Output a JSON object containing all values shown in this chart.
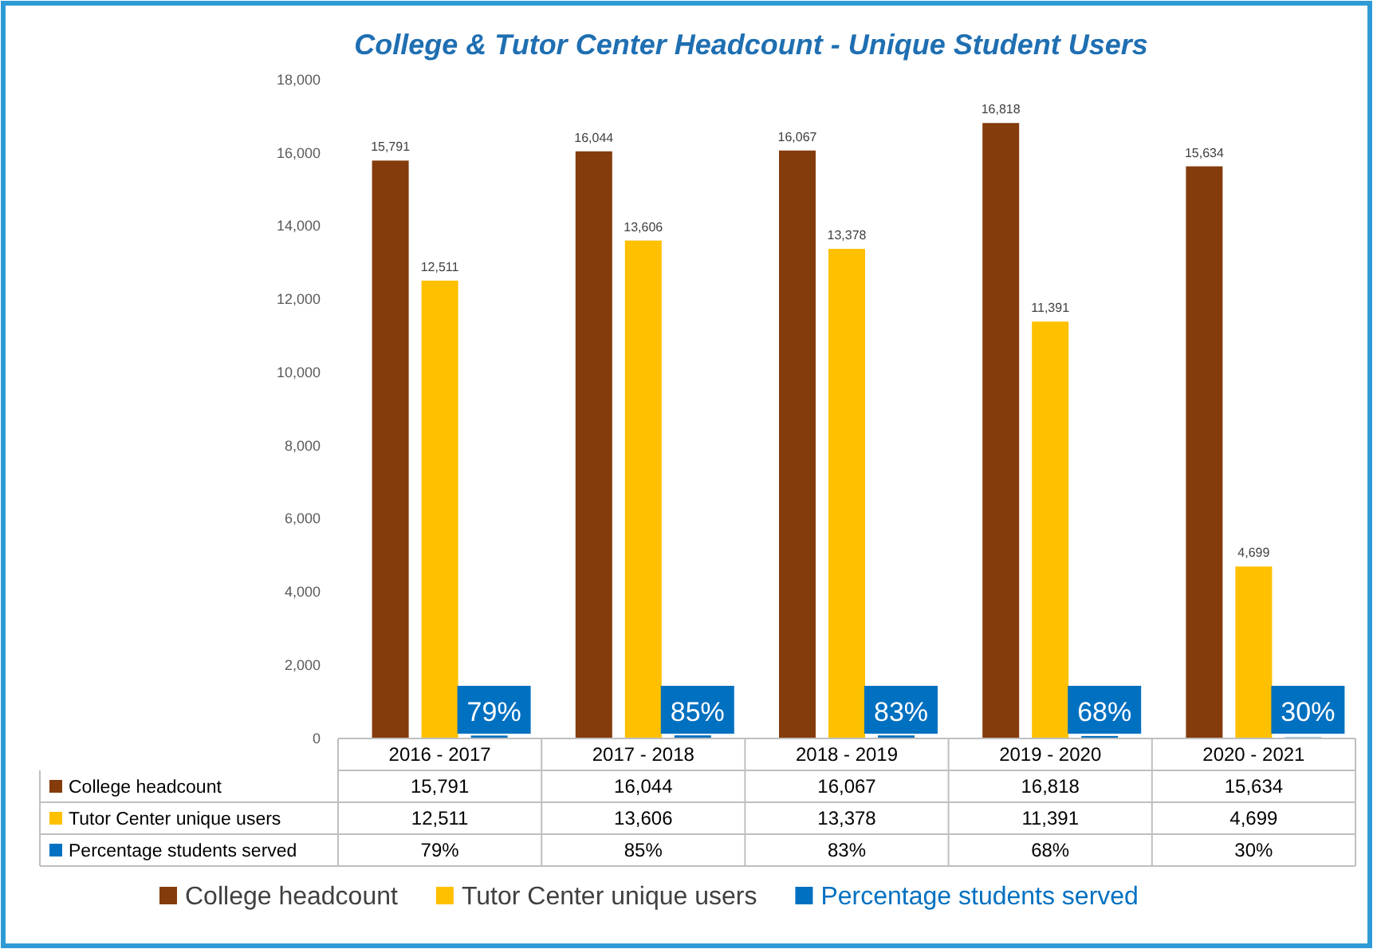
{
  "chart_data": {
    "type": "bar",
    "title": "College & Tutor Center Headcount - Unique Student Users",
    "categories": [
      "2016 - 2017",
      "2017 - 2018",
      "2018 - 2019",
      "2019 - 2020",
      "2020 - 2021"
    ],
    "series": [
      {
        "name": "College headcount",
        "color": "#843c0c",
        "values": [
          15791,
          16044,
          16067,
          16818,
          15634
        ],
        "value_labels": [
          "15,791",
          "16,044",
          "16,067",
          "16,818",
          "15,634"
        ]
      },
      {
        "name": "Tutor Center unique users",
        "color": "#ffc000",
        "values": [
          12511,
          13606,
          13378,
          11391,
          4699
        ],
        "value_labels": [
          "12,511",
          "13,606",
          "13,378",
          "11,391",
          "4,699"
        ]
      },
      {
        "name": "Percentage students served",
        "color": "#0070c0",
        "values": [
          79,
          85,
          83,
          68,
          30
        ],
        "value_labels": [
          "79%",
          "85%",
          "83%",
          "68%",
          "30%"
        ]
      }
    ],
    "ylim": [
      0,
      18000
    ],
    "yticks": [
      {
        "value": 0,
        "label": "0"
      },
      {
        "value": 2000,
        "label": "2,000"
      },
      {
        "value": 4000,
        "label": "4,000"
      },
      {
        "value": 6000,
        "label": "6,000"
      },
      {
        "value": 8000,
        "label": "8,000"
      },
      {
        "value": 10000,
        "label": "10,000"
      },
      {
        "value": 12000,
        "label": "12,000"
      },
      {
        "value": 14000,
        "label": "14,000"
      },
      {
        "value": 16000,
        "label": "16,000"
      },
      {
        "value": 18000,
        "label": "18,000"
      }
    ],
    "grid": false,
    "legend": "bottom"
  }
}
